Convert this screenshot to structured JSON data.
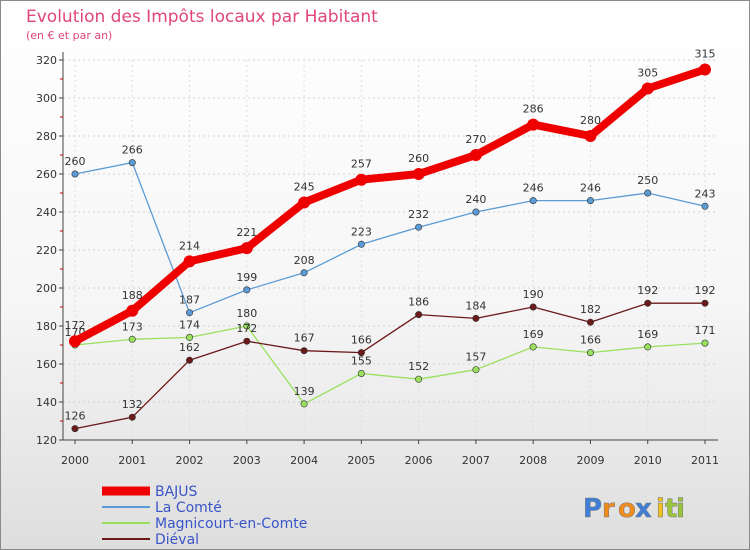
{
  "chart_data": {
    "type": "line",
    "title": "Evolution des Impôts locaux par Habitant",
    "subtitle": "(en € et par an)",
    "x": [
      "2000",
      "2001",
      "2002",
      "2003",
      "2004",
      "2005",
      "2006",
      "2007",
      "2008",
      "2009",
      "2010",
      "2011"
    ],
    "ylim": [
      120,
      320
    ],
    "yticks": [
      120,
      140,
      160,
      180,
      200,
      220,
      240,
      260,
      280,
      300,
      320
    ],
    "grid": true,
    "legend_position": "bottom-left",
    "series": [
      {
        "name": "BAJUS",
        "color": "#ee0000",
        "values": [
          172,
          188,
          214,
          221,
          245,
          257,
          260,
          270,
          286,
          280,
          305,
          315
        ]
      },
      {
        "name": "La Comté",
        "color": "#5b9bd5",
        "values": [
          260,
          266,
          187,
          199,
          208,
          223,
          232,
          240,
          246,
          246,
          250,
          243
        ]
      },
      {
        "name": "Magnicourt-en-Comte",
        "color": "#99e05e",
        "values": [
          170,
          173,
          174,
          180,
          139,
          155,
          152,
          157,
          169,
          166,
          169,
          171
        ]
      },
      {
        "name": "Diéval",
        "color": "#6b1a1a",
        "values": [
          126,
          132,
          162,
          172,
          167,
          166,
          186,
          184,
          190,
          182,
          192,
          192
        ]
      }
    ]
  },
  "logo": {
    "text": "Proxiti",
    "letters": [
      "P",
      "r",
      "o",
      "x",
      "i",
      "t",
      "i"
    ],
    "colors": [
      "#3f7fd8",
      "#f08c1c",
      "#f08c1c",
      "#3f7fd8",
      "#f0c020",
      "#9ac43a",
      "#9ac43a"
    ]
  }
}
